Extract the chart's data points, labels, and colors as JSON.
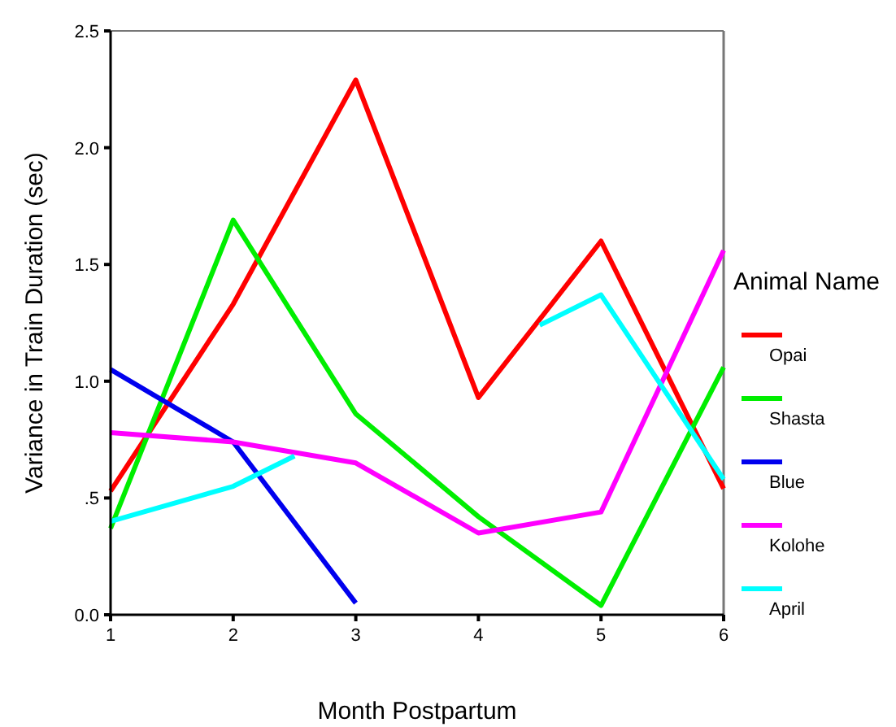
{
  "chart_data": {
    "type": "line",
    "xlabel": "Month Postpartum",
    "ylabel": "Variance in Train Duration (sec)",
    "legend_title": "Animal Name",
    "legend": "right",
    "grid": false,
    "marker": "none",
    "line_style": "solid",
    "x": [
      1,
      2,
      3,
      4,
      5,
      6
    ],
    "xlim": [
      1,
      6
    ],
    "xticks": [
      1,
      2,
      3,
      4,
      5,
      6
    ],
    "ylim": [
      0,
      2.5
    ],
    "yticks": [
      {
        "value": 0,
        "label": "0.0"
      },
      {
        "value": 0.5,
        "label": ".5"
      },
      {
        "value": 1,
        "label": "1.0"
      },
      {
        "value": 1.5,
        "label": "1.5"
      },
      {
        "value": 2,
        "label": "2.0"
      },
      {
        "value": 2.5,
        "label": "2.5"
      }
    ],
    "series": [
      {
        "name": "Opai",
        "color": "#ff0000",
        "values": [
          0.53,
          1.33,
          2.29,
          0.93,
          1.6,
          0.54
        ]
      },
      {
        "name": "Shasta",
        "color": "#00ee00",
        "values": [
          0.37,
          1.69,
          0.86,
          0.42,
          0.04,
          1.06
        ]
      },
      {
        "name": "Blue",
        "color": "#0000ee",
        "values": [
          1.05,
          0.74,
          0.05,
          null,
          null,
          null
        ]
      },
      {
        "name": "Kolohe",
        "color": "#ff00ff",
        "values": [
          0.78,
          0.74,
          0.65,
          0.35,
          0.44,
          1.56
        ]
      },
      {
        "name": "April",
        "color": "#00ffff",
        "x": [
          1,
          2,
          2.5,
          3.5,
          4.5,
          5,
          6
        ],
        "values": [
          0.4,
          0.55,
          0.68,
          null,
          1.24,
          1.37,
          0.58
        ]
      }
    ]
  }
}
